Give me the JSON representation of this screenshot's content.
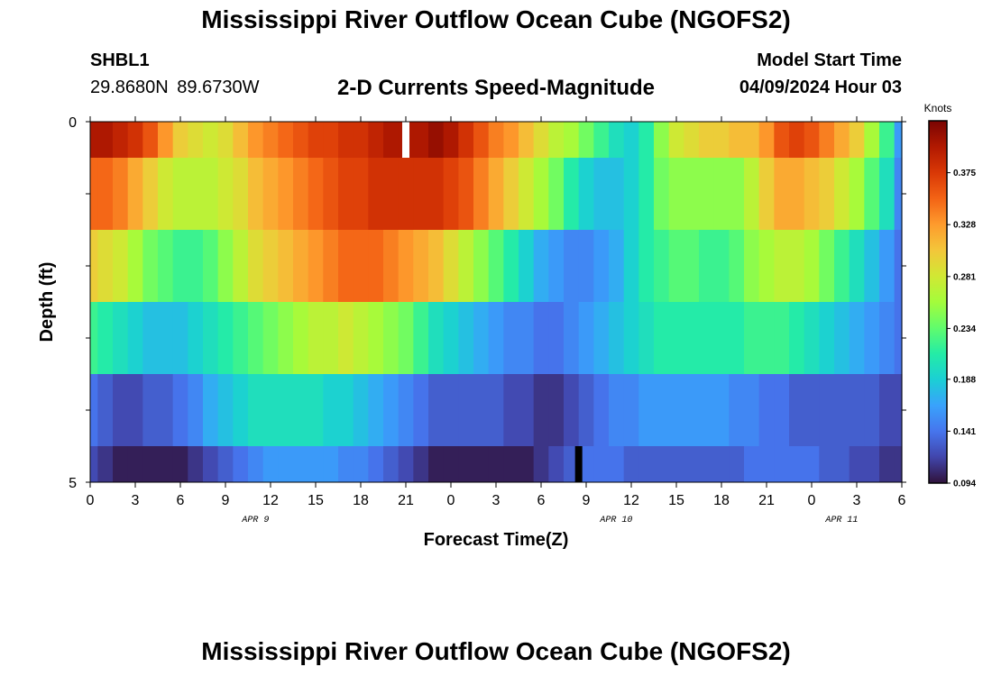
{
  "header": {
    "title": "Mississippi River Outflow Ocean Cube (NGOFS2)",
    "station": "SHBL1",
    "coords": "29.8680N  89.6730W",
    "subtitle": "2-D Currents Speed-Magnitude",
    "model_start_label": "Model Start Time",
    "model_start_value": "04/09/2024 Hour 03"
  },
  "footer": {
    "title": "Mississippi River Outflow Ocean Cube (NGOFS2)"
  },
  "chart_data": {
    "type": "heatmap",
    "title": "2-D Currents Speed-Magnitude",
    "xlabel": "Forecast Time(Z)",
    "ylabel": "Depth (ft)",
    "x_tick_labels": [
      "0",
      "3",
      "6",
      "9",
      "12",
      "15",
      "18",
      "21",
      "0",
      "3",
      "6",
      "9",
      "12",
      "15",
      "18",
      "21",
      "0",
      "3",
      "6"
    ],
    "date_labels": [
      {
        "label": "APR 9",
        "at_hour": 11
      },
      {
        "label": "APR 10",
        "at_hour": 35
      },
      {
        "label": "APR 11",
        "at_hour": 50
      }
    ],
    "x_range_hours": [
      0,
      54
    ],
    "y_ticks": [
      "0",
      "5"
    ],
    "ylim": [
      0,
      5
    ],
    "depth_rows": [
      0,
      1,
      2,
      3,
      4,
      5
    ],
    "colorbar": {
      "units": "Knots",
      "min": 0.094,
      "max": 0.422,
      "ticks": [
        "0.094",
        "0.141",
        "0.188",
        "0.234",
        "0.281",
        "0.328",
        "0.375"
      ],
      "colors": [
        "#30123b",
        "#4145ab",
        "#4675ed",
        "#39a2fc",
        "#1bcfd4",
        "#24eca6",
        "#61fc6c",
        "#a4fc3b",
        "#d1e834",
        "#f3c63a",
        "#fe9b2d",
        "#f36315",
        "#d93806",
        "#b11901",
        "#7a0402"
      ]
    },
    "speed_rows_by_hour": [
      {
        "depth": 0,
        "knots": [
          0.4,
          0.4,
          0.39,
          0.38,
          0.36,
          0.33,
          0.3,
          0.29,
          0.28,
          0.29,
          0.31,
          0.33,
          0.34,
          0.35,
          0.36,
          0.37,
          0.37,
          0.38,
          0.38,
          0.39,
          0.4,
          0.4,
          0.4,
          0.41,
          0.4,
          0.38,
          0.36,
          0.34,
          0.33,
          0.31,
          0.29,
          0.27,
          0.26,
          0.24,
          0.22,
          0.2,
          0.19,
          0.21,
          0.25,
          0.28,
          0.29,
          0.3,
          0.3,
          0.31,
          0.31,
          0.33,
          0.36,
          0.37,
          0.36,
          0.34,
          0.32,
          0.3,
          0.26,
          0.22,
          0.16
        ]
      },
      {
        "depth": 1,
        "knots": [
          0.35,
          0.35,
          0.34,
          0.32,
          0.3,
          0.28,
          0.27,
          0.27,
          0.27,
          0.28,
          0.29,
          0.31,
          0.32,
          0.33,
          0.34,
          0.35,
          0.36,
          0.37,
          0.37,
          0.38,
          0.38,
          0.38,
          0.38,
          0.38,
          0.37,
          0.36,
          0.34,
          0.32,
          0.3,
          0.28,
          0.26,
          0.24,
          0.21,
          0.19,
          0.18,
          0.18,
          0.19,
          0.21,
          0.24,
          0.25,
          0.25,
          0.25,
          0.25,
          0.25,
          0.27,
          0.3,
          0.32,
          0.32,
          0.31,
          0.3,
          0.28,
          0.26,
          0.23,
          0.2,
          0.15
        ]
      },
      {
        "depth": 2,
        "knots": [
          0.3,
          0.29,
          0.28,
          0.26,
          0.24,
          0.23,
          0.22,
          0.22,
          0.23,
          0.25,
          0.27,
          0.29,
          0.3,
          0.31,
          0.32,
          0.33,
          0.34,
          0.35,
          0.35,
          0.35,
          0.34,
          0.33,
          0.32,
          0.31,
          0.29,
          0.27,
          0.25,
          0.23,
          0.21,
          0.19,
          0.17,
          0.16,
          0.15,
          0.15,
          0.16,
          0.17,
          0.19,
          0.21,
          0.22,
          0.23,
          0.23,
          0.22,
          0.22,
          0.23,
          0.25,
          0.26,
          0.27,
          0.27,
          0.26,
          0.24,
          0.22,
          0.2,
          0.18,
          0.16,
          0.14
        ]
      },
      {
        "depth": 3,
        "knots": [
          0.22,
          0.21,
          0.2,
          0.19,
          0.18,
          0.18,
          0.18,
          0.19,
          0.2,
          0.21,
          0.22,
          0.23,
          0.24,
          0.25,
          0.26,
          0.27,
          0.27,
          0.28,
          0.27,
          0.26,
          0.25,
          0.24,
          0.22,
          0.2,
          0.19,
          0.18,
          0.17,
          0.16,
          0.15,
          0.15,
          0.14,
          0.14,
          0.15,
          0.16,
          0.17,
          0.18,
          0.19,
          0.2,
          0.21,
          0.21,
          0.21,
          0.21,
          0.21,
          0.21,
          0.22,
          0.22,
          0.22,
          0.21,
          0.2,
          0.19,
          0.18,
          0.17,
          0.16,
          0.15,
          0.14
        ]
      },
      {
        "depth": 4,
        "knots": [
          0.14,
          0.13,
          0.12,
          0.12,
          0.13,
          0.13,
          0.14,
          0.15,
          0.17,
          0.18,
          0.19,
          0.2,
          0.2,
          0.2,
          0.2,
          0.2,
          0.19,
          0.19,
          0.18,
          0.17,
          0.16,
          0.15,
          0.14,
          0.13,
          0.13,
          0.13,
          0.13,
          0.13,
          0.12,
          0.12,
          0.11,
          0.11,
          0.12,
          0.13,
          0.14,
          0.15,
          0.15,
          0.16,
          0.16,
          0.16,
          0.16,
          0.16,
          0.16,
          0.15,
          0.15,
          0.14,
          0.14,
          0.13,
          0.13,
          0.13,
          0.13,
          0.13,
          0.13,
          0.12,
          0.12
        ]
      },
      {
        "depth": 5,
        "knots": [
          0.12,
          0.11,
          0.1,
          0.1,
          0.1,
          0.1,
          0.1,
          0.11,
          0.12,
          0.13,
          0.14,
          0.15,
          0.16,
          0.16,
          0.16,
          0.16,
          0.16,
          0.15,
          0.15,
          0.14,
          0.13,
          0.12,
          0.11,
          0.1,
          0.1,
          0.1,
          0.1,
          0.1,
          0.1,
          0.1,
          0.11,
          0.12,
          0.13,
          0.14,
          0.14,
          0.14,
          0.13,
          0.13,
          0.13,
          0.13,
          0.13,
          0.13,
          0.13,
          0.13,
          0.14,
          0.14,
          0.14,
          0.14,
          0.14,
          0.13,
          0.13,
          0.12,
          0.12,
          0.11,
          0.11
        ]
      }
    ],
    "missing_markers": [
      {
        "depth": 0,
        "hour": 21,
        "color": "#ffffff"
      },
      {
        "depth": 5,
        "hour": 32.5,
        "color": "#000000"
      }
    ]
  }
}
